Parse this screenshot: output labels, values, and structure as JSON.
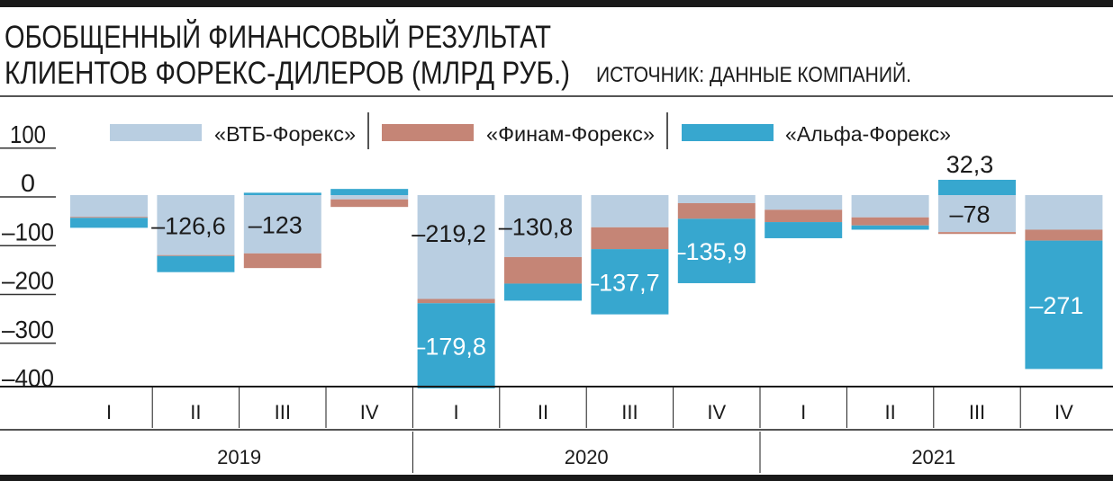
{
  "title_line1": "ОБОБЩЕННЫЙ ФИНАНСОВЫЙ РЕЗУЛЬТАТ",
  "title_line2": "КЛИЕНТОВ ФОРЕКС-ДИЛЕРОВ (МЛРД РУБ.)",
  "source": "ИСТОЧНИК: ДАННЫЕ КОМПАНИЙ.",
  "chart_data": {
    "type": "bar",
    "stacked": true,
    "title": "ОБОБЩЕННЫЙ ФИНАНСОВЫЙ РЕЗУЛЬТАТ КЛИЕНТОВ ФОРЕКС-ДИЛЕРОВ (МЛРД РУБ.)",
    "ylim": [
      -400,
      100
    ],
    "yticks": [
      "100",
      "0",
      "–100",
      "–200",
      "–300",
      "–400"
    ],
    "ytick_values": [
      100,
      0,
      -100,
      -200,
      -300,
      -400
    ],
    "categories": [
      "I",
      "II",
      "III",
      "IV",
      "I",
      "II",
      "III",
      "IV",
      "I",
      "II",
      "III",
      "IV"
    ],
    "years": [
      {
        "label": "2019",
        "quarters": 4
      },
      {
        "label": "2020",
        "quarters": 4
      },
      {
        "label": "2021",
        "quarters": 4
      }
    ],
    "legend_position": "top",
    "series": [
      {
        "name": "«ВТБ-Форекс»",
        "color": "#b9cee1",
        "values": [
          -46,
          -126.6,
          -123,
          -9,
          -219.2,
          -130.8,
          -68,
          -17,
          -31,
          -47,
          -78,
          -73
        ]
      },
      {
        "name": "«Финам-Форекс»",
        "color": "#c58576",
        "values": [
          -2,
          -2,
          -31,
          -16,
          -9,
          -56,
          -46,
          -33,
          -26,
          -17,
          -4,
          -23
        ]
      },
      {
        "name": "«Альфа-Форекс»",
        "color": "#37a7cf",
        "values": [
          -21,
          -34,
          5,
          13,
          -179.8,
          -36,
          -137.7,
          -135.9,
          -34,
          -9,
          32.3,
          -271
        ]
      }
    ],
    "data_labels": [
      {
        "text": "–126,6",
        "quarter": 1,
        "series": 0
      },
      {
        "text": "–123",
        "quarter": 2,
        "series": 0
      },
      {
        "text": "–219,2",
        "quarter": 4,
        "series": 0
      },
      {
        "text": "–179,8",
        "quarter": 4,
        "series": 2
      },
      {
        "text": "–130,8",
        "quarter": 5,
        "series": 0
      },
      {
        "text": "–137,7",
        "quarter": 6,
        "series": 2
      },
      {
        "text": "–135,9",
        "quarter": 7,
        "series": 2
      },
      {
        "text": "32,3",
        "quarter": 10,
        "series": 2
      },
      {
        "text": "–78",
        "quarter": 10,
        "series": 0
      },
      {
        "text": "–271",
        "quarter": 11,
        "series": 2
      }
    ]
  }
}
